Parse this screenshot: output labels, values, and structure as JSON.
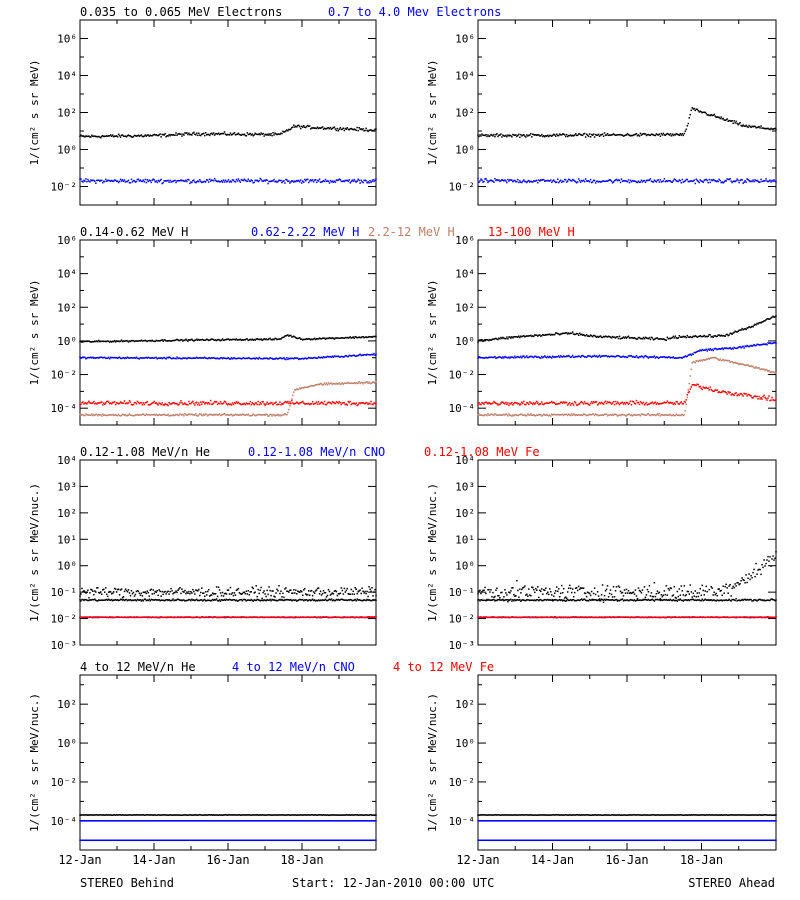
{
  "colors": {
    "black": "#000000",
    "blue": "#0000ff",
    "tan": "#c0806a",
    "red": "#ff0000"
  },
  "footer": {
    "left": "STEREO Behind",
    "center": "Start: 12-Jan-2010 00:00 UTC",
    "right": "STEREO Ahead"
  },
  "x_ticks": [
    "12-Jan",
    "14-Jan",
    "16-Jan",
    "18-Jan"
  ],
  "chart_data": [
    {
      "type": "scatter",
      "scale": "log",
      "title": "0.035 to 0.065 MeV Electrons / 0.7 to 4.0 Mev Electrons",
      "legend": [
        {
          "label": "0.035 to 0.065 MeV Electrons",
          "color": "#000000"
        },
        {
          "label": "0.7 to 4.0 Mev Electrons",
          "color": "#0000ff"
        }
      ],
      "ylabel": "1/(cm^2 s sr MeV)",
      "ylim_log10": [
        -3,
        7
      ],
      "yticks_log10": [
        -2,
        0,
        2,
        4,
        6
      ],
      "x_days": [
        0,
        8
      ],
      "panels": [
        {
          "spacecraft": "STEREO Behind",
          "series": [
            {
              "color": "#000000",
              "x_days": [
                0,
                2,
                3.2,
                5.4,
                5.8,
                6.2,
                8
              ],
              "log10": [
                0.7,
                0.75,
                0.85,
                0.8,
                1.25,
                1.2,
                1.05
              ],
              "scatter": 0.07
            },
            {
              "color": "#0000ff",
              "x_days": [
                0,
                8
              ],
              "log10": [
                -1.7,
                -1.7
              ],
              "scatter": 0.09
            }
          ]
        },
        {
          "spacecraft": "STEREO Ahead",
          "series": [
            {
              "color": "#000000",
              "x_days": [
                0,
                5.3,
                5.55,
                5.75,
                6.5,
                7.2,
                8
              ],
              "log10": [
                0.75,
                0.8,
                0.8,
                2.2,
                1.7,
                1.25,
                1.1
              ],
              "scatter": 0.07
            },
            {
              "color": "#0000ff",
              "x_days": [
                0,
                8
              ],
              "log10": [
                -1.7,
                -1.7
              ],
              "scatter": 0.09
            }
          ]
        }
      ]
    },
    {
      "type": "scatter",
      "scale": "log",
      "title": "0.14-0.62 MeV H / 0.62-2.22 MeV H / 2.2-12 MeV H / 13-100 MeV H",
      "legend": [
        {
          "label": "0.14-0.62 MeV H",
          "color": "#000000"
        },
        {
          "label": "0.62-2.22 MeV H",
          "color": "#0000ff"
        },
        {
          "label": "2.2-12 MeV H",
          "color": "#c0806a"
        },
        {
          "label": "13-100 MeV H",
          "color": "#ff0000"
        }
      ],
      "ylabel": "1/(cm^2 s sr MeV)",
      "ylim_log10": [
        -5,
        6
      ],
      "yticks_log10": [
        -4,
        -2,
        0,
        2,
        4,
        6
      ],
      "x_days": [
        0,
        8
      ],
      "panels": [
        {
          "spacecraft": "STEREO Behind",
          "series": [
            {
              "color": "#000000",
              "x_days": [
                0,
                3,
                5.4,
                5.6,
                6.0,
                8
              ],
              "log10": [
                -0.05,
                0.05,
                0.1,
                0.35,
                0.1,
                0.25
              ],
              "scatter": 0.04
            },
            {
              "color": "#0000ff",
              "x_days": [
                0,
                6,
                8
              ],
              "log10": [
                -1.0,
                -1.05,
                -0.8
              ],
              "scatter": 0.04
            },
            {
              "color": "#c0806a",
              "x_days": [
                0,
                5.6,
                5.8,
                6.4,
                8
              ],
              "log10": [
                -4.4,
                -4.4,
                -2.9,
                -2.6,
                -2.45
              ],
              "scatter": 0.05
            },
            {
              "color": "#ff0000",
              "x_days": [
                0,
                8
              ],
              "log10": [
                -3.7,
                -3.7
              ],
              "scatter": 0.1
            }
          ]
        },
        {
          "spacecraft": "STEREO Ahead",
          "series": [
            {
              "color": "#000000",
              "x_days": [
                0,
                1.1,
                2.5,
                3.2,
                5.0,
                5.4,
                6.6,
                7.3,
                8
              ],
              "log10": [
                0.0,
                0.25,
                0.45,
                0.25,
                0.1,
                0.25,
                0.3,
                0.8,
                1.5
              ],
              "scatter": 0.06
            },
            {
              "color": "#0000ff",
              "x_days": [
                0,
                3.4,
                5.5,
                6.0,
                7.0,
                8
              ],
              "log10": [
                -1.0,
                -0.9,
                -1.0,
                -0.55,
                -0.4,
                -0.1
              ],
              "scatter": 0.05
            },
            {
              "color": "#c0806a",
              "x_days": [
                0,
                5.55,
                5.75,
                6.3,
                7.3,
                8
              ],
              "log10": [
                -4.4,
                -4.4,
                -1.3,
                -1.0,
                -1.5,
                -1.9
              ],
              "scatter": 0.05
            },
            {
              "color": "#ff0000",
              "x_days": [
                0,
                5.55,
                5.75,
                6.5,
                8
              ],
              "log10": [
                -3.7,
                -3.7,
                -2.6,
                -3.0,
                -3.5
              ],
              "scatter": 0.1
            }
          ]
        }
      ]
    },
    {
      "type": "scatter",
      "scale": "log",
      "title": "0.12-1.08 MeV/n He / 0.12-1.08 MeV/n CNO / 0.12-1.08 MeV Fe",
      "legend": [
        {
          "label": "0.12-1.08 MeV/n He",
          "color": "#000000"
        },
        {
          "label": "0.12-1.08 MeV/n CNO",
          "color": "#0000ff"
        },
        {
          "label": "0.12-1.08 MeV Fe",
          "color": "#ff0000"
        }
      ],
      "ylabel": "1/(cm^2 s sr MeV/nuc.)",
      "ylim_log10": [
        -3,
        4
      ],
      "yticks_log10": [
        -3,
        -2,
        -1,
        0,
        1,
        2,
        3,
        4
      ],
      "x_days": [
        0,
        8
      ],
      "panels": [
        {
          "spacecraft": "STEREO Behind",
          "series": [
            {
              "color": "#000000",
              "x_days": [
                0,
                8
              ],
              "log10": [
                -1.3,
                -1.3
              ],
              "scatter": 0.03
            },
            {
              "color": "#000000",
              "x_days": [
                0,
                8
              ],
              "log10": [
                -1.0,
                -1.0
              ],
              "scatter": 0.15
            },
            {
              "color": "#0000ff",
              "x_days": [
                0,
                8
              ],
              "log10": [
                -1.95,
                -1.95
              ],
              "scatter": 0.01
            },
            {
              "color": "#ff0000",
              "x_days": [
                0,
                8
              ],
              "log10": [
                -1.95,
                -1.95
              ],
              "scatter": 0.01
            }
          ]
        },
        {
          "spacecraft": "STEREO Ahead",
          "series": [
            {
              "color": "#000000",
              "x_days": [
                0,
                6.5,
                8
              ],
              "log10": [
                -1.3,
                -1.3,
                -1.3
              ],
              "scatter": 0.03
            },
            {
              "color": "#000000",
              "x_days": [
                0,
                6.5,
                7.0,
                7.5,
                8
              ],
              "log10": [
                -1.0,
                -1.0,
                -0.6,
                -0.2,
                0.4
              ],
              "scatter": 0.25
            },
            {
              "color": "#0000ff",
              "x_days": [
                0,
                8
              ],
              "log10": [
                -1.95,
                -1.95
              ],
              "scatter": 0.01
            },
            {
              "color": "#ff0000",
              "x_days": [
                0,
                8
              ],
              "log10": [
                -1.95,
                -1.95
              ],
              "scatter": 0.01
            }
          ]
        }
      ]
    },
    {
      "type": "scatter",
      "scale": "log",
      "title": "4 to 12 MeV/n He / 4 to 12 MeV/n CNO / 4 to 12 MeV Fe",
      "legend": [
        {
          "label": "4 to 12 MeV/n He",
          "color": "#000000"
        },
        {
          "label": "4 to 12 MeV/n CNO",
          "color": "#0000ff"
        },
        {
          "label": "4 to 12 MeV Fe",
          "color": "#ff0000"
        }
      ],
      "ylabel": "1/(cm^2 s sr MeV/nuc.)",
      "ylim_log10": [
        -5.5,
        3.5
      ],
      "yticks_log10": [
        -4,
        -2,
        0,
        2
      ],
      "x_days": [
        0,
        8
      ],
      "panels": [
        {
          "spacecraft": "STEREO Behind",
          "series": [
            {
              "color": "#000000",
              "x_days": [
                0,
                8
              ],
              "log10": [
                -3.7,
                -3.7
              ],
              "scatter": 0.01
            },
            {
              "color": "#0000ff",
              "x_days": [
                0,
                8
              ],
              "log10": [
                -4.0,
                -4.0
              ],
              "scatter": 0.0
            },
            {
              "color": "#0000ff",
              "x_days": [
                0,
                8
              ],
              "log10": [
                -5.0,
                -5.0
              ],
              "scatter": 0.0
            }
          ]
        },
        {
          "spacecraft": "STEREO Ahead",
          "series": [
            {
              "color": "#000000",
              "x_days": [
                0,
                8
              ],
              "log10": [
                -3.7,
                -3.7
              ],
              "scatter": 0.01
            },
            {
              "color": "#0000ff",
              "x_days": [
                0,
                8
              ],
              "log10": [
                -4.0,
                -4.0
              ],
              "scatter": 0.0
            },
            {
              "color": "#0000ff",
              "x_days": [
                0,
                8
              ],
              "log10": [
                -5.0,
                -5.0
              ],
              "scatter": 0.0
            }
          ]
        }
      ]
    }
  ]
}
